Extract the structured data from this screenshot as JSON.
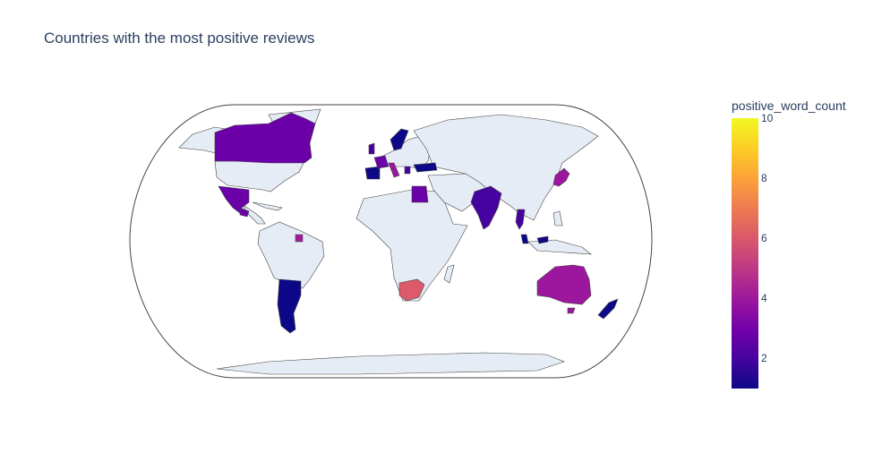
{
  "title": "Countries with the most positive reviews",
  "colorbar": {
    "title": "positive_word_count",
    "ticks": [
      "2",
      "4",
      "6",
      "8",
      "10"
    ],
    "min": 1,
    "max": 10,
    "colorscale": [
      "#0d0887",
      "#46039f",
      "#7201a8",
      "#9c179e",
      "#bd3786",
      "#d8576b",
      "#ed7953",
      "#fb9f3a",
      "#fdca26",
      "#f0f921"
    ]
  },
  "map": {
    "projection": "natural-earth",
    "land_color": "#e5ecf6",
    "border_color": "#444444"
  },
  "countries": [
    {
      "name": "Canada",
      "value": 3
    },
    {
      "name": "Mexico",
      "value": 3
    },
    {
      "name": "Argentina",
      "value": 1
    },
    {
      "name": "Suriname",
      "value": 4
    },
    {
      "name": "South Africa",
      "value": 6
    },
    {
      "name": "Australia",
      "value": 4
    },
    {
      "name": "New Zealand",
      "value": 1
    },
    {
      "name": "India",
      "value": 2
    },
    {
      "name": "Japan",
      "value": 4
    },
    {
      "name": "Egypt",
      "value": 3
    },
    {
      "name": "Turkey",
      "value": 1
    },
    {
      "name": "Spain",
      "value": 1
    },
    {
      "name": "France",
      "value": 3
    },
    {
      "name": "Italy",
      "value": 4
    },
    {
      "name": "Sweden",
      "value": 1
    },
    {
      "name": "Thailand",
      "value": 2
    },
    {
      "name": "Malaysia",
      "value": 1
    },
    {
      "name": "Greece",
      "value": 2
    },
    {
      "name": "United Kingdom",
      "value": 2
    }
  ]
}
